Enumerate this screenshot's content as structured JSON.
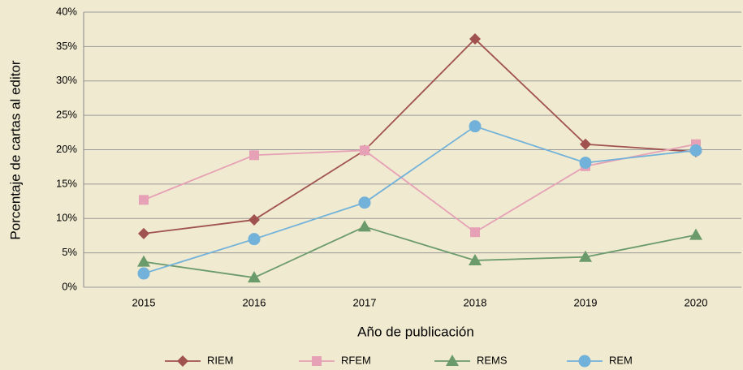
{
  "chart_data": {
    "type": "line",
    "categories": [
      "2015",
      "2016",
      "2017",
      "2018",
      "2019",
      "2020"
    ],
    "series": [
      {
        "name": "RIEM",
        "color": "#a0524f",
        "marker": "diamond",
        "values": [
          7.8,
          9.8,
          19.9,
          36.1,
          20.8,
          19.7
        ]
      },
      {
        "name": "RFEM",
        "color": "#e6a1b6",
        "marker": "square",
        "values": [
          12.7,
          19.2,
          19.9,
          8.0,
          17.6,
          20.8
        ]
      },
      {
        "name": "REMS",
        "color": "#6b9a6b",
        "marker": "triangle",
        "values": [
          3.7,
          1.4,
          8.8,
          3.9,
          4.4,
          7.6
        ]
      },
      {
        "name": "REM",
        "color": "#72b2da",
        "marker": "circle",
        "values": [
          2.0,
          7.0,
          12.3,
          23.4,
          18.1,
          19.9
        ]
      }
    ],
    "xlabel": "Año de publicación",
    "ylabel": "Porcentaje de cartas al editor",
    "ylim": [
      0,
      40
    ],
    "yticks": [
      {
        "value": 0,
        "label": "0%"
      },
      {
        "value": 5,
        "label": "5%"
      },
      {
        "value": 10,
        "label": "10%"
      },
      {
        "value": 15,
        "label": "15%"
      },
      {
        "value": 20,
        "label": "20%"
      },
      {
        "value": 25,
        "label": "25%"
      },
      {
        "value": 30,
        "label": "30%"
      },
      {
        "value": 35,
        "label": "35%"
      },
      {
        "value": 40,
        "label": "40%"
      }
    ],
    "grid": true,
    "legend": "bottom"
  }
}
